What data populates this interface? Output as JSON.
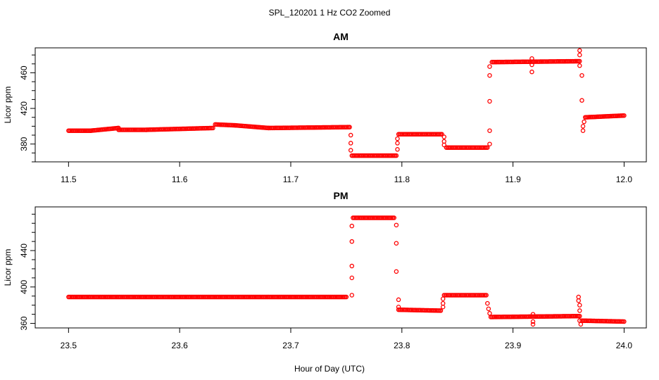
{
  "figure": {
    "title": "SPL_120201  1 Hz CO2 Zoomed",
    "xlabel": "Hour of Day (UTC)",
    "marker_color": "#ff0000"
  },
  "chart_data": [
    {
      "type": "scatter",
      "title": "AM",
      "xlabel": "",
      "ylabel": "Licor ppm",
      "xlim": [
        11.47,
        12.02
      ],
      "ylim": [
        360,
        488
      ],
      "xticks": [
        11.5,
        11.6,
        11.7,
        11.8,
        11.9,
        12.0
      ],
      "xtick_labels": [
        "11.5",
        "11.6",
        "11.7",
        "11.8",
        "11.9",
        "12.0"
      ],
      "yticks": [
        380,
        420,
        460
      ],
      "ytick_labels": [
        "380",
        "420",
        "460"
      ],
      "minor_yticks": [
        360,
        370,
        390,
        400,
        410,
        430,
        440,
        450,
        470,
        480
      ],
      "grid": false,
      "legend": false,
      "segments": [
        {
          "x": [
            11.5,
            11.52
          ],
          "y": [
            395,
            395
          ]
        },
        {
          "x": [
            11.52,
            11.545
          ],
          "y": [
            395,
            398
          ]
        },
        {
          "x": [
            11.545,
            11.57
          ],
          "y": [
            396,
            396
          ]
        },
        {
          "x": [
            11.57,
            11.63
          ],
          "y": [
            396,
            398
          ]
        },
        {
          "x": [
            11.632,
            11.65
          ],
          "y": [
            402,
            401
          ]
        },
        {
          "x": [
            11.65,
            11.68
          ],
          "y": [
            401,
            398
          ]
        },
        {
          "x": [
            11.68,
            11.753
          ],
          "y": [
            398,
            399
          ]
        },
        {
          "x": [
            11.755,
            11.795
          ],
          "y": [
            367,
            367
          ]
        },
        {
          "x": [
            11.797,
            11.836
          ],
          "y": [
            391,
            391
          ]
        },
        {
          "x": [
            11.84,
            11.877
          ],
          "y": [
            376,
            376
          ]
        },
        {
          "x": [
            11.881,
            11.96
          ],
          "y": [
            472,
            473
          ]
        },
        {
          "x": [
            11.965,
            12.0
          ],
          "y": [
            410,
            412
          ]
        }
      ],
      "points": [
        {
          "x": 11.754,
          "y": 390
        },
        {
          "x": 11.754,
          "y": 381
        },
        {
          "x": 11.754,
          "y": 373
        },
        {
          "x": 11.796,
          "y": 374
        },
        {
          "x": 11.796,
          "y": 381
        },
        {
          "x": 11.796,
          "y": 386
        },
        {
          "x": 11.838,
          "y": 388
        },
        {
          "x": 11.838,
          "y": 383
        },
        {
          "x": 11.838,
          "y": 379
        },
        {
          "x": 11.879,
          "y": 380
        },
        {
          "x": 11.879,
          "y": 395
        },
        {
          "x": 11.879,
          "y": 428
        },
        {
          "x": 11.879,
          "y": 457
        },
        {
          "x": 11.879,
          "y": 467
        },
        {
          "x": 11.917,
          "y": 476
        },
        {
          "x": 11.917,
          "y": 469
        },
        {
          "x": 11.917,
          "y": 461
        },
        {
          "x": 11.96,
          "y": 485
        },
        {
          "x": 11.96,
          "y": 480
        },
        {
          "x": 11.96,
          "y": 468
        },
        {
          "x": 11.962,
          "y": 457
        },
        {
          "x": 11.962,
          "y": 429
        },
        {
          "x": 11.963,
          "y": 400
        },
        {
          "x": 11.963,
          "y": 395
        },
        {
          "x": 11.964,
          "y": 405
        }
      ]
    },
    {
      "type": "scatter",
      "title": "PM",
      "xlabel": "",
      "ylabel": "Licor ppm",
      "xlim": [
        23.47,
        24.02
      ],
      "ylim": [
        355,
        488
      ],
      "xticks": [
        23.5,
        23.6,
        23.7,
        23.8,
        23.9,
        24.0
      ],
      "xtick_labels": [
        "23.5",
        "23.6",
        "23.7",
        "23.8",
        "23.9",
        "24.0"
      ],
      "yticks": [
        360,
        400,
        440
      ],
      "ytick_labels": [
        "360",
        "400",
        "440"
      ],
      "minor_yticks": [
        370,
        380,
        390,
        410,
        420,
        430,
        450,
        460,
        470,
        480
      ],
      "grid": false,
      "legend": false,
      "segments": [
        {
          "x": [
            23.5,
            23.75
          ],
          "y": [
            389,
            389
          ]
        },
        {
          "x": [
            23.756,
            23.793
          ],
          "y": [
            476,
            476
          ]
        },
        {
          "x": [
            23.797,
            23.835
          ],
          "y": [
            375,
            374
          ]
        },
        {
          "x": [
            23.838,
            23.876
          ],
          "y": [
            391,
            391
          ]
        },
        {
          "x": [
            23.88,
            23.96
          ],
          "y": [
            367,
            368
          ]
        },
        {
          "x": [
            23.962,
            24.0
          ],
          "y": [
            363,
            362
          ]
        }
      ],
      "points": [
        {
          "x": 23.755,
          "y": 391
        },
        {
          "x": 23.755,
          "y": 410
        },
        {
          "x": 23.755,
          "y": 423
        },
        {
          "x": 23.755,
          "y": 450
        },
        {
          "x": 23.755,
          "y": 467
        },
        {
          "x": 23.795,
          "y": 468
        },
        {
          "x": 23.795,
          "y": 448
        },
        {
          "x": 23.795,
          "y": 417
        },
        {
          "x": 23.797,
          "y": 386
        },
        {
          "x": 23.797,
          "y": 378
        },
        {
          "x": 23.837,
          "y": 378
        },
        {
          "x": 23.837,
          "y": 382
        },
        {
          "x": 23.837,
          "y": 387
        },
        {
          "x": 23.877,
          "y": 382
        },
        {
          "x": 23.878,
          "y": 376
        },
        {
          "x": 23.879,
          "y": 371
        },
        {
          "x": 23.918,
          "y": 370
        },
        {
          "x": 23.918,
          "y": 362
        },
        {
          "x": 23.918,
          "y": 359
        },
        {
          "x": 23.959,
          "y": 389
        },
        {
          "x": 23.959,
          "y": 385
        },
        {
          "x": 23.96,
          "y": 380
        },
        {
          "x": 23.96,
          "y": 374
        },
        {
          "x": 23.96,
          "y": 363
        },
        {
          "x": 23.961,
          "y": 359
        }
      ]
    }
  ]
}
